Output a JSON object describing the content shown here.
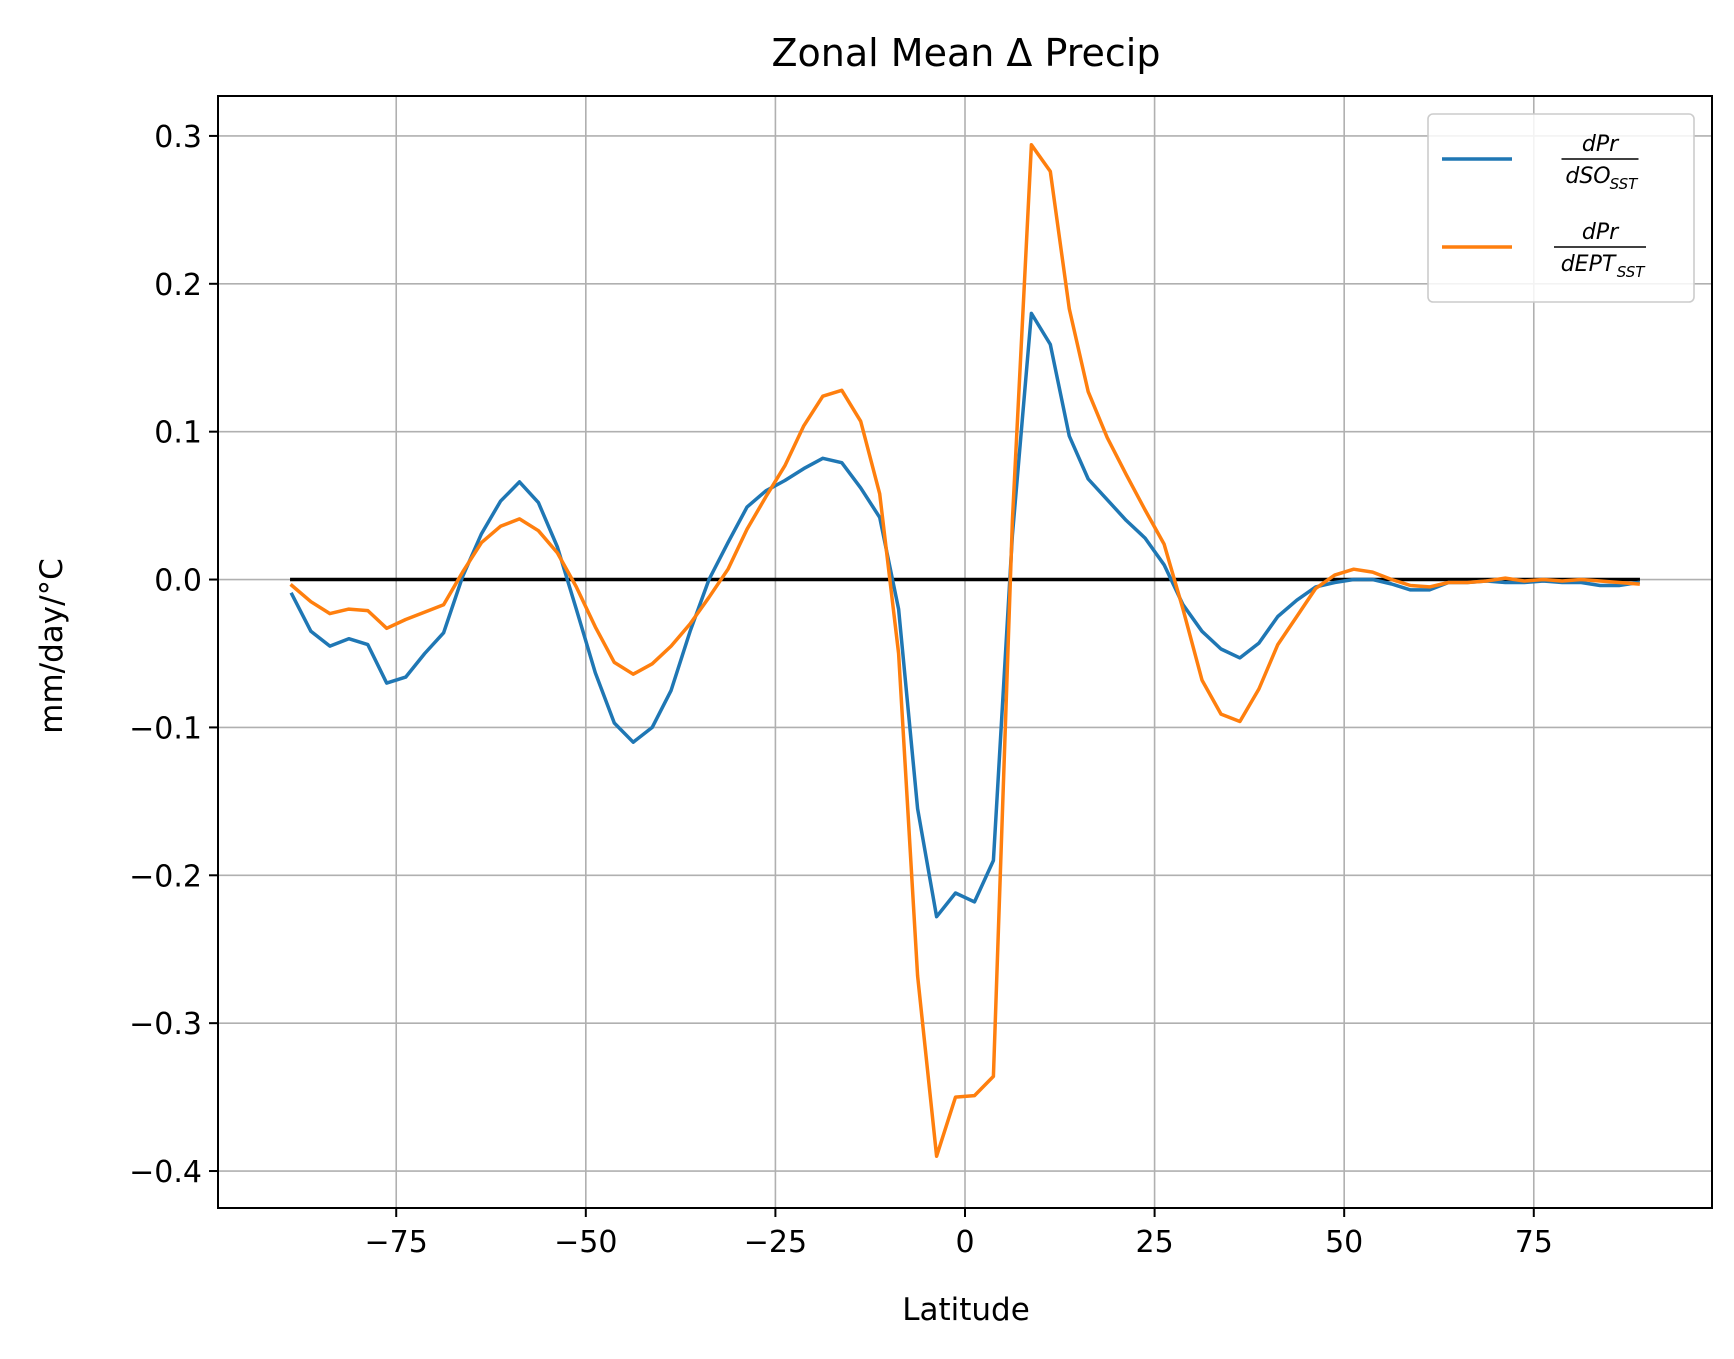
{
  "chart_data": {
    "type": "line",
    "title": "Zonal Mean Δ Precip",
    "xlabel": "Latitude",
    "ylabel": "mm/day/°C",
    "xlim": [
      -98.5,
      98.5
    ],
    "ylim": [
      -0.425,
      0.327
    ],
    "xticks": [
      -75,
      -50,
      -25,
      0,
      25,
      50,
      75
    ],
    "xtick_labels": [
      "−75",
      "−50",
      "−25",
      "0",
      "25",
      "50",
      "75"
    ],
    "yticks": [
      0.3,
      0.2,
      0.1,
      0.0,
      -0.1,
      -0.2,
      -0.3,
      -0.4
    ],
    "ytick_labels": [
      "0.3",
      "0.2",
      "0.1",
      "0.0",
      "−0.1",
      "−0.2",
      "−0.3",
      "−0.4"
    ],
    "grid": true,
    "legend_position": "top-right",
    "reference_line": {
      "y": 0,
      "x_range": [
        -89,
        89
      ],
      "color": "#000000"
    },
    "x": [
      -88.75,
      -86.25,
      -83.75,
      -81.25,
      -78.75,
      -76.25,
      -73.75,
      -71.25,
      -68.75,
      -66.25,
      -63.75,
      -61.25,
      -58.75,
      -56.25,
      -53.75,
      -51.25,
      -48.75,
      -46.25,
      -43.75,
      -41.25,
      -38.75,
      -36.25,
      -33.75,
      -31.25,
      -28.75,
      -26.25,
      -23.75,
      -21.25,
      -18.75,
      -16.25,
      -13.75,
      -11.25,
      -8.75,
      -6.25,
      -3.75,
      -1.25,
      1.25,
      3.75,
      6.25,
      8.75,
      11.25,
      13.75,
      16.25,
      18.75,
      21.25,
      23.75,
      26.25,
      28.75,
      31.25,
      33.75,
      36.25,
      38.75,
      41.25,
      43.75,
      46.25,
      48.75,
      51.25,
      53.75,
      56.25,
      58.75,
      61.25,
      63.75,
      66.25,
      68.75,
      71.25,
      73.75,
      76.25,
      78.75,
      81.25,
      83.75,
      86.25,
      88.75
    ],
    "series": [
      {
        "name_num": "dPr",
        "name_den": "dSO",
        "name_sub": "SST",
        "color": "#1f77b4",
        "values": [
          -0.01,
          -0.035,
          -0.045,
          -0.04,
          -0.044,
          -0.07,
          -0.066,
          -0.05,
          -0.036,
          0.002,
          0.031,
          0.053,
          0.066,
          0.052,
          0.022,
          -0.02,
          -0.063,
          -0.097,
          -0.11,
          -0.1,
          -0.075,
          -0.035,
          0.0,
          0.025,
          0.049,
          0.06,
          0.067,
          0.075,
          0.082,
          0.079,
          0.062,
          0.042,
          -0.02,
          -0.155,
          -0.228,
          -0.212,
          -0.218,
          -0.19,
          0.03,
          0.18,
          0.159,
          0.097,
          0.068,
          0.054,
          0.04,
          0.028,
          0.01,
          -0.017,
          -0.035,
          -0.047,
          -0.053,
          -0.043,
          -0.025,
          -0.014,
          -0.005,
          -0.002,
          0.0,
          0.0,
          -0.003,
          -0.007,
          -0.007,
          -0.002,
          -0.002,
          -0.001,
          -0.002,
          -0.002,
          -0.001,
          -0.002,
          -0.002,
          -0.004,
          -0.004,
          -0.002
        ]
      },
      {
        "name_num": "dPr",
        "name_den": "dEPT",
        "name_sub": "SST",
        "color": "#ff7f0e",
        "values": [
          -0.004,
          -0.015,
          -0.023,
          -0.02,
          -0.021,
          -0.033,
          -0.027,
          -0.022,
          -0.017,
          0.005,
          0.025,
          0.036,
          0.041,
          0.033,
          0.018,
          -0.005,
          -0.032,
          -0.056,
          -0.064,
          -0.057,
          -0.045,
          -0.03,
          -0.012,
          0.007,
          0.034,
          0.056,
          0.077,
          0.104,
          0.124,
          0.128,
          0.107,
          0.058,
          -0.05,
          -0.268,
          -0.39,
          -0.35,
          -0.349,
          -0.336,
          0.04,
          0.294,
          0.276,
          0.183,
          0.127,
          0.096,
          0.071,
          0.047,
          0.024,
          -0.02,
          -0.068,
          -0.091,
          -0.096,
          -0.074,
          -0.044,
          -0.025,
          -0.006,
          0.003,
          0.007,
          0.005,
          0.0,
          -0.004,
          -0.005,
          -0.002,
          -0.002,
          -0.001,
          0.001,
          -0.001,
          0.0,
          -0.001,
          0.0,
          -0.001,
          -0.002,
          -0.003
        ]
      }
    ]
  }
}
